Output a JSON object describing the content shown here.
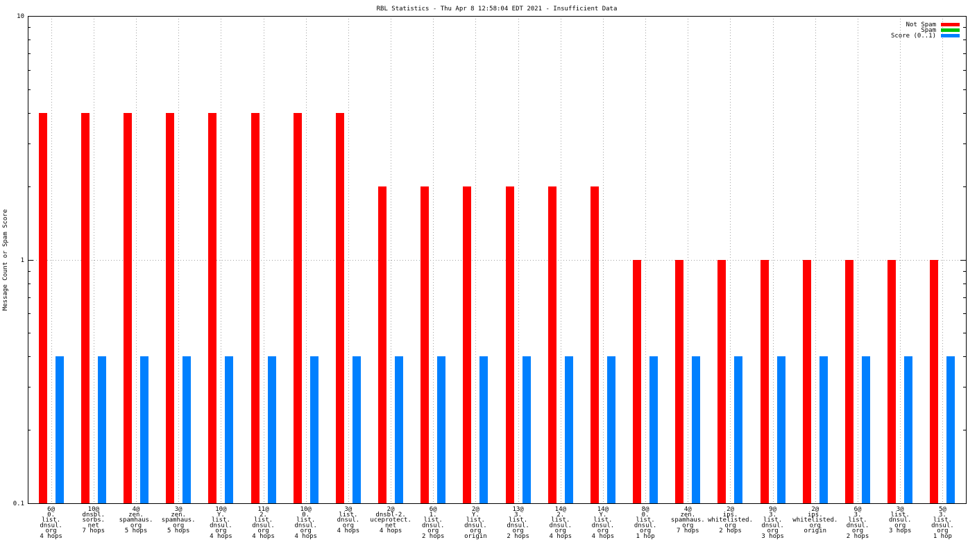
{
  "chart_data": {
    "type": "bar",
    "title": "RBL Statistics - Thu Apr  8 12:58:04 EDT 2021 - Insufficient Data",
    "xlabel": "",
    "ylabel": "Message Count or Spam Score",
    "yscale": "log",
    "ylim": [
      0.1,
      10
    ],
    "ytick_labels": [
      "0.1",
      "1",
      "10"
    ],
    "grid": true,
    "legend_position": "top-right",
    "categories": [
      "6@ 0. list. dnsul. org 4 hops",
      "10@ dnsbl. sorbs. net 7 hops",
      "4@ zen. spamhaus. org 5 hops",
      "3@ zen. spamhaus. org 5 hops",
      "10@ Y. list. dnsul. org 4 hops",
      "11@ 2. list. dnsul. org 4 hops",
      "10@ 0. list. dnsul. org 4 hops",
      "3@ list. dnsul. org 4 hops",
      "2@ dnsbl-2. uceprotect. net 4 hops",
      "6@ 1. list. dnsul. org 2 hops",
      "2@ Y. list. dnsul. org origin",
      "13@ 3. list. dnsul. org 2 hops",
      "14@ 2. list. dnsul. org 4 hops",
      "14@ Y. list. dnsul. org 4 hops",
      "8@ 0. list. dnsul. org 1 hop",
      "4@ zen. spamhaus. org 7 hops",
      "2@ ips. whitelisted. org 2 hops",
      "9@ 3. list. dnsul. org 3 hops",
      "2@ ips. whitelisted. org origin",
      "6@ 3. list. dnsul. org 2 hops",
      "3@ list. dnsul. org 3 hops",
      "5@ 3. list. dnsul. org 1 hop"
    ],
    "category_lines": [
      [
        "6@",
        "0.",
        "list.",
        "dnsul.",
        "org",
        "4 hops"
      ],
      [
        "10@",
        "dnsbl.",
        "sorbs.",
        "net",
        "7 hops"
      ],
      [
        "4@",
        "zen.",
        "spamhaus.",
        "org",
        "5 hops"
      ],
      [
        "3@",
        "zen.",
        "spamhaus.",
        "org",
        "5 hops"
      ],
      [
        "10@",
        "Y.",
        "list.",
        "dnsul.",
        "org",
        "4 hops"
      ],
      [
        "11@",
        "2.",
        "list.",
        "dnsul.",
        "org",
        "4 hops"
      ],
      [
        "10@",
        "0.",
        "list.",
        "dnsul.",
        "org",
        "4 hops"
      ],
      [
        "3@",
        "list.",
        "dnsul.",
        "org",
        "4 hops"
      ],
      [
        "2@",
        "dnsbl-2.",
        "uceprotect.",
        "net",
        "4 hops"
      ],
      [
        "6@",
        "1.",
        "list.",
        "dnsul.",
        "org",
        "2 hops"
      ],
      [
        "2@",
        "Y.",
        "list.",
        "dnsul.",
        "org",
        "origin"
      ],
      [
        "13@",
        "3.",
        "list.",
        "dnsul.",
        "org",
        "2 hops"
      ],
      [
        "14@",
        "2.",
        "list.",
        "dnsul.",
        "org",
        "4 hops"
      ],
      [
        "14@",
        "Y.",
        "list.",
        "dnsul.",
        "org",
        "4 hops"
      ],
      [
        "8@",
        "0.",
        "list.",
        "dnsul.",
        "org",
        "1 hop"
      ],
      [
        "4@",
        "zen.",
        "spamhaus.",
        "org",
        "7 hops"
      ],
      [
        "2@",
        "ips.",
        "whitelisted.",
        "org",
        "2 hops"
      ],
      [
        "9@",
        "3.",
        "list.",
        "dnsul.",
        "org",
        "3 hops"
      ],
      [
        "2@",
        "ips.",
        "whitelisted.",
        "org",
        "origin"
      ],
      [
        "6@",
        "3.",
        "list.",
        "dnsul.",
        "org",
        "2 hops"
      ],
      [
        "3@",
        "list.",
        "dnsul.",
        "org",
        "3 hops"
      ],
      [
        "5@",
        "3.",
        "list.",
        "dnsul.",
        "org",
        "1 hop"
      ]
    ],
    "series": [
      {
        "name": "Not Spam",
        "color": "#ff0000",
        "values": [
          4,
          4,
          4,
          4,
          4,
          4,
          4,
          4,
          2,
          2,
          2,
          2,
          2,
          2,
          1,
          1,
          1,
          1,
          1,
          1,
          1,
          1
        ]
      },
      {
        "name": "Spam",
        "color": "#00c000",
        "values": [
          0,
          0,
          0,
          0,
          0,
          0,
          0,
          0,
          0,
          0,
          0,
          0,
          0,
          0,
          0,
          0,
          0,
          0,
          0,
          0,
          0,
          0
        ]
      },
      {
        "name": "Score (0..1)",
        "color": "#0080ff",
        "values": [
          0.4,
          0.4,
          0.4,
          0.4,
          0.4,
          0.4,
          0.4,
          0.4,
          0.4,
          0.4,
          0.4,
          0.4,
          0.4,
          0.4,
          0.4,
          0.4,
          0.4,
          0.4,
          0.4,
          0.4,
          0.4,
          0.4
        ]
      }
    ]
  }
}
